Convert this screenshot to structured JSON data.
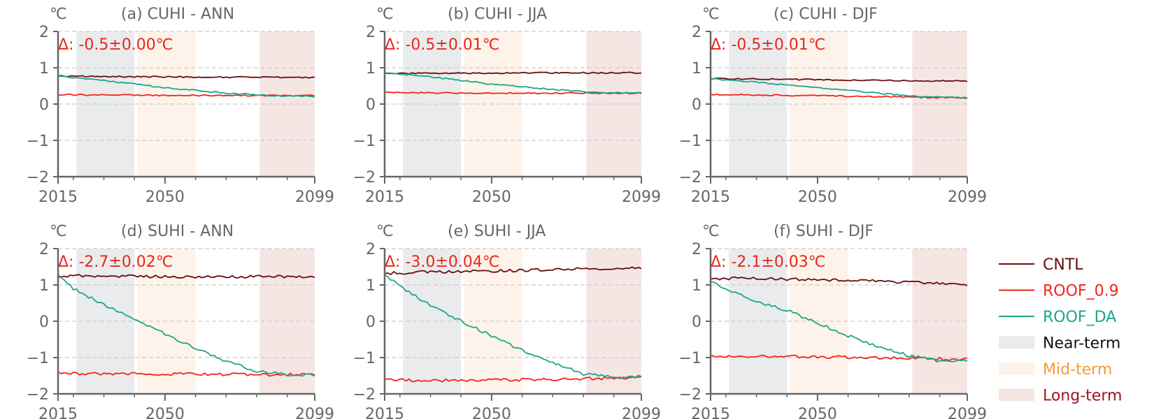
{
  "colors": {
    "CNTL": "#6b0c0c",
    "ROOF_0.9": "#f2251a",
    "ROOF_DA": "#1ca68a",
    "near": "#e9ebed",
    "mid": "#fdf3ea",
    "long": "#f5e6e4",
    "axis": "#666666",
    "grid": "#cccccc",
    "delta": "#e8271c"
  },
  "legend": [
    {
      "label": "CNTL",
      "type": "line",
      "series": "CNTL",
      "text_color": "#6b0c0c"
    },
    {
      "label": "ROOF_0.9",
      "type": "line",
      "series": "ROOF_0.9",
      "text_color": "#f2251a"
    },
    {
      "label": "ROOF_DA",
      "type": "line",
      "series": "ROOF_DA",
      "text_color": "#1ca68a"
    },
    {
      "label": "Near-term",
      "type": "patch",
      "series": "near",
      "text_color": "#111111"
    },
    {
      "label": "Mid-term",
      "type": "patch",
      "series": "mid",
      "text_color": "#f59a33"
    },
    {
      "label": "Long-term",
      "type": "patch",
      "series": "long",
      "text_color": "#a3131b"
    }
  ],
  "chart_data": [
    {
      "type": "line",
      "title": "(a) CUHI - ANN",
      "unit": "℃",
      "annotation": "Δ: -0.5±0.00℃",
      "xlim": [
        2015,
        2099
      ],
      "ylim": [
        -2,
        2
      ],
      "xticks": [
        2015,
        2050,
        2099
      ],
      "yticks": [
        2,
        1,
        0,
        -1,
        -2
      ],
      "ytick_labels": [
        "2",
        "1",
        "0",
        "−1",
        "−2"
      ],
      "grid": true,
      "periods": [
        {
          "name": "Near-term",
          "range": [
            2021,
            2040
          ]
        },
        {
          "name": "Mid-term",
          "range": [
            2041,
            2060
          ]
        },
        {
          "name": "Long-term",
          "range": [
            2081,
            2099
          ]
        }
      ],
      "series": [
        {
          "name": "CNTL",
          "x": [
            2015,
            2030,
            2050,
            2070,
            2099
          ],
          "values": [
            0.77,
            0.76,
            0.75,
            0.74,
            0.73
          ]
        },
        {
          "name": "ROOF_0.9",
          "x": [
            2015,
            2030,
            2050,
            2070,
            2099
          ],
          "values": [
            0.26,
            0.25,
            0.24,
            0.24,
            0.23
          ]
        },
        {
          "name": "ROOF_DA",
          "x": [
            2015,
            2030,
            2050,
            2070,
            2085,
            2099
          ],
          "values": [
            0.77,
            0.65,
            0.45,
            0.3,
            0.23,
            0.21
          ]
        }
      ]
    },
    {
      "type": "line",
      "title": "(b) CUHI - JJA",
      "unit": "℃",
      "annotation": "Δ: -0.5±0.01℃",
      "xlim": [
        2015,
        2099
      ],
      "ylim": [
        -2,
        2
      ],
      "xticks": [
        2015,
        2050,
        2099
      ],
      "yticks": [
        2,
        1,
        0,
        -1,
        -2
      ],
      "ytick_labels": [
        "2",
        "1",
        "0",
        "−1",
        "−2"
      ],
      "grid": true,
      "periods": [
        {
          "name": "Near-term",
          "range": [
            2021,
            2040
          ]
        },
        {
          "name": "Mid-term",
          "range": [
            2041,
            2060
          ]
        },
        {
          "name": "Long-term",
          "range": [
            2081,
            2099
          ]
        }
      ],
      "series": [
        {
          "name": "CNTL",
          "x": [
            2015,
            2030,
            2050,
            2070,
            2099
          ],
          "values": [
            0.84,
            0.85,
            0.85,
            0.86,
            0.86
          ]
        },
        {
          "name": "ROOF_0.9",
          "x": [
            2015,
            2030,
            2050,
            2070,
            2099
          ],
          "values": [
            0.31,
            0.31,
            0.3,
            0.3,
            0.3
          ]
        },
        {
          "name": "ROOF_DA",
          "x": [
            2015,
            2030,
            2050,
            2070,
            2085,
            2099
          ],
          "values": [
            0.86,
            0.75,
            0.55,
            0.4,
            0.32,
            0.3
          ]
        }
      ]
    },
    {
      "type": "line",
      "title": "(c) CUHI - DJF",
      "unit": "℃",
      "annotation": "Δ: -0.5±0.01℃",
      "xlim": [
        2015,
        2099
      ],
      "ylim": [
        -2,
        2
      ],
      "xticks": [
        2015,
        2050,
        2099
      ],
      "yticks": [
        2,
        1,
        0,
        -1,
        -2
      ],
      "ytick_labels": [
        "2",
        "1",
        "0",
        "−1",
        "−2"
      ],
      "grid": true,
      "periods": [
        {
          "name": "Near-term",
          "range": [
            2021,
            2040
          ]
        },
        {
          "name": "Mid-term",
          "range": [
            2041,
            2060
          ]
        },
        {
          "name": "Long-term",
          "range": [
            2081,
            2099
          ]
        }
      ],
      "series": [
        {
          "name": "CNTL",
          "x": [
            2015,
            2030,
            2050,
            2070,
            2099
          ],
          "values": [
            0.7,
            0.69,
            0.67,
            0.65,
            0.63
          ]
        },
        {
          "name": "ROOF_0.9",
          "x": [
            2015,
            2030,
            2050,
            2070,
            2099
          ],
          "values": [
            0.26,
            0.25,
            0.23,
            0.2,
            0.17
          ]
        },
        {
          "name": "ROOF_DA",
          "x": [
            2015,
            2030,
            2050,
            2070,
            2085,
            2099
          ],
          "values": [
            0.7,
            0.6,
            0.45,
            0.3,
            0.2,
            0.17
          ]
        }
      ]
    },
    {
      "type": "line",
      "title": "(d) SUHI - ANN",
      "unit": "℃",
      "annotation": "Δ: -2.7±0.02℃",
      "xlim": [
        2015,
        2099
      ],
      "ylim": [
        -2,
        2
      ],
      "xticks": [
        2015,
        2050,
        2099
      ],
      "yticks": [
        2,
        1,
        0,
        -1,
        -2
      ],
      "ytick_labels": [
        "2",
        "1",
        "0",
        "−1",
        "−2"
      ],
      "grid": true,
      "periods": [
        {
          "name": "Near-term",
          "range": [
            2021,
            2040
          ]
        },
        {
          "name": "Mid-term",
          "range": [
            2041,
            2060
          ]
        },
        {
          "name": "Long-term",
          "range": [
            2081,
            2099
          ]
        }
      ],
      "series": [
        {
          "name": "CNTL",
          "x": [
            2015,
            2030,
            2050,
            2070,
            2099
          ],
          "values": [
            1.25,
            1.24,
            1.23,
            1.22,
            1.23
          ]
        },
        {
          "name": "ROOF_0.9",
          "x": [
            2015,
            2030,
            2050,
            2070,
            2099
          ],
          "values": [
            -1.43,
            -1.44,
            -1.45,
            -1.46,
            -1.47
          ]
        },
        {
          "name": "ROOF_DA",
          "x": [
            2015,
            2020,
            2030,
            2040,
            2050,
            2060,
            2070,
            2080,
            2090,
            2099
          ],
          "values": [
            1.25,
            0.9,
            0.45,
            0.05,
            -0.35,
            -0.75,
            -1.1,
            -1.38,
            -1.47,
            -1.48
          ]
        }
      ]
    },
    {
      "type": "line",
      "title": "(e) SUHI - JJA",
      "unit": "℃",
      "annotation": "Δ: -3.0±0.04℃",
      "xlim": [
        2015,
        2099
      ],
      "ylim": [
        -2,
        2
      ],
      "xticks": [
        2015,
        2050,
        2099
      ],
      "yticks": [
        2,
        1,
        0,
        -1,
        -2
      ],
      "ytick_labels": [
        "2",
        "1",
        "0",
        "−1",
        "−2"
      ],
      "grid": true,
      "periods": [
        {
          "name": "Near-term",
          "range": [
            2021,
            2040
          ]
        },
        {
          "name": "Mid-term",
          "range": [
            2041,
            2060
          ]
        },
        {
          "name": "Long-term",
          "range": [
            2081,
            2099
          ]
        }
      ],
      "series": [
        {
          "name": "CNTL",
          "x": [
            2015,
            2030,
            2050,
            2070,
            2099
          ],
          "values": [
            1.32,
            1.36,
            1.38,
            1.42,
            1.48
          ]
        },
        {
          "name": "ROOF_0.9",
          "x": [
            2015,
            2030,
            2050,
            2070,
            2099
          ],
          "values": [
            -1.62,
            -1.63,
            -1.62,
            -1.6,
            -1.55
          ]
        },
        {
          "name": "ROOF_DA",
          "x": [
            2015,
            2020,
            2030,
            2040,
            2050,
            2060,
            2070,
            2080,
            2090,
            2099
          ],
          "values": [
            1.3,
            0.95,
            0.45,
            0.0,
            -0.4,
            -0.8,
            -1.15,
            -1.45,
            -1.55,
            -1.52
          ]
        }
      ]
    },
    {
      "type": "line",
      "title": "(f) SUHI - DJF",
      "unit": "℃",
      "annotation": "Δ: -2.1±0.03℃",
      "xlim": [
        2015,
        2099
      ],
      "ylim": [
        -2,
        2
      ],
      "xticks": [
        2015,
        2050,
        2099
      ],
      "yticks": [
        2,
        1,
        0,
        -1,
        -2
      ],
      "ytick_labels": [
        "2",
        "1",
        "0",
        "−1",
        "−2"
      ],
      "grid": true,
      "periods": [
        {
          "name": "Near-term",
          "range": [
            2021,
            2040
          ]
        },
        {
          "name": "Mid-term",
          "range": [
            2041,
            2060
          ]
        },
        {
          "name": "Long-term",
          "range": [
            2081,
            2099
          ]
        }
      ],
      "series": [
        {
          "name": "CNTL",
          "x": [
            2015,
            2030,
            2050,
            2070,
            2099
          ],
          "values": [
            1.18,
            1.17,
            1.15,
            1.1,
            1.02
          ]
        },
        {
          "name": "ROOF_0.9",
          "x": [
            2015,
            2030,
            2050,
            2070,
            2099
          ],
          "values": [
            -0.95,
            -0.96,
            -0.98,
            -1.0,
            -1.05
          ]
        },
        {
          "name": "ROOF_DA",
          "x": [
            2015,
            2020,
            2030,
            2040,
            2050,
            2060,
            2070,
            2080,
            2090,
            2099
          ],
          "values": [
            1.1,
            0.9,
            0.55,
            0.3,
            -0.05,
            -0.4,
            -0.7,
            -0.95,
            -1.1,
            -1.08
          ]
        }
      ]
    }
  ]
}
